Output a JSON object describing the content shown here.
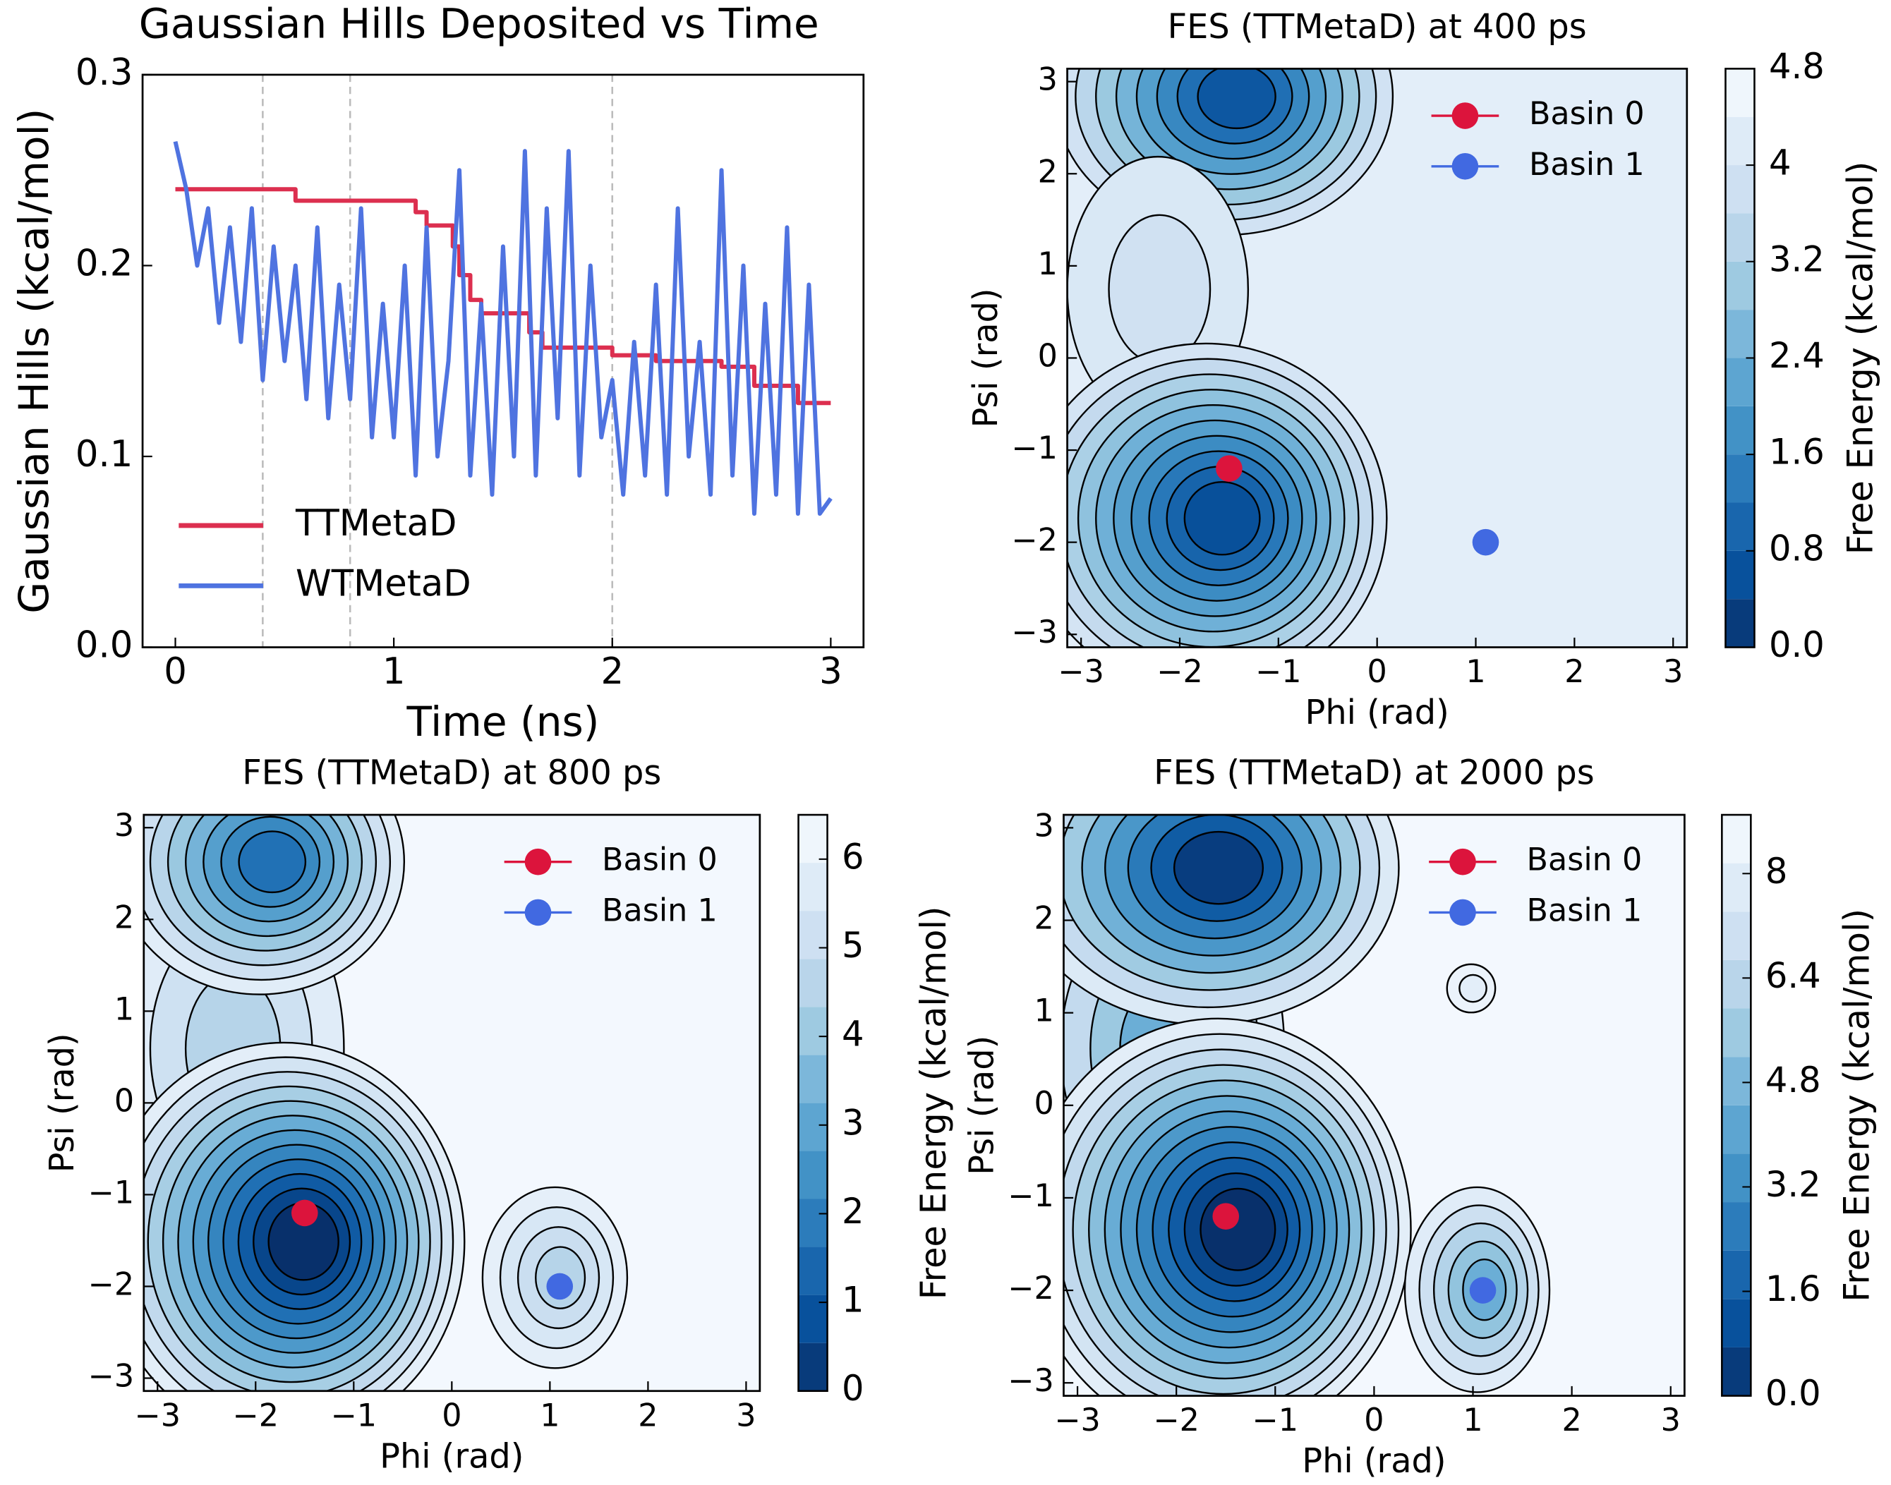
{
  "chart_data": [
    {
      "type": "line",
      "title": "Gaussian Hills Deposited vs Time",
      "x_label": "Time (ns)",
      "y_label": "Gaussian Hills (kcal/mol)",
      "xlim": [
        -0.15,
        3.15
      ],
      "ylim": [
        0,
        0.3
      ],
      "xticks": [
        0,
        1,
        2,
        3
      ],
      "yticks": [
        {
          "value": 0,
          "label": "0.0"
        },
        0.1,
        0.2,
        0.3
      ],
      "vlines": [
        0.4,
        0.8,
        2.0
      ],
      "legend": "lower left",
      "series": [
        {
          "name": "TTMetaD",
          "color": "#dc2f4f",
          "x": [
            0,
            0.55,
            0.55,
            1.1,
            1.1,
            1.15,
            1.15,
            1.27,
            1.27,
            1.3,
            1.3,
            1.35,
            1.35,
            1.4,
            1.4,
            1.62,
            1.62,
            1.68,
            1.68,
            2.0,
            2.0,
            2.2,
            2.2,
            2.5,
            2.5,
            2.65,
            2.65,
            2.85,
            2.85,
            3.0
          ],
          "values": [
            0.24,
            0.24,
            0.234,
            0.234,
            0.228,
            0.228,
            0.221,
            0.221,
            0.21,
            0.21,
            0.195,
            0.195,
            0.182,
            0.182,
            0.175,
            0.175,
            0.165,
            0.165,
            0.157,
            0.157,
            0.153,
            0.153,
            0.15,
            0.15,
            0.147,
            0.147,
            0.137,
            0.137,
            0.128,
            0.128
          ]
        },
        {
          "name": "WTMetaD",
          "color": "#4f73e0",
          "x": [
            0,
            0.05,
            0.1,
            0.15,
            0.2,
            0.25,
            0.3,
            0.35,
            0.4,
            0.45,
            0.5,
            0.55,
            0.6,
            0.65,
            0.7,
            0.75,
            0.8,
            0.85,
            0.9,
            0.95,
            1.0,
            1.05,
            1.1,
            1.15,
            1.2,
            1.25,
            1.3,
            1.35,
            1.4,
            1.45,
            1.5,
            1.55,
            1.6,
            1.65,
            1.7,
            1.75,
            1.8,
            1.85,
            1.9,
            1.95,
            2.0,
            2.05,
            2.1,
            2.15,
            2.2,
            2.25,
            2.3,
            2.35,
            2.4,
            2.45,
            2.5,
            2.55,
            2.6,
            2.65,
            2.7,
            2.75,
            2.8,
            2.85,
            2.9,
            2.95,
            3.0
          ],
          "values": [
            0.265,
            0.24,
            0.2,
            0.23,
            0.17,
            0.22,
            0.16,
            0.23,
            0.14,
            0.21,
            0.15,
            0.2,
            0.13,
            0.22,
            0.12,
            0.19,
            0.13,
            0.23,
            0.11,
            0.18,
            0.11,
            0.2,
            0.09,
            0.22,
            0.1,
            0.15,
            0.25,
            0.09,
            0.18,
            0.08,
            0.21,
            0.1,
            0.26,
            0.09,
            0.23,
            0.12,
            0.26,
            0.09,
            0.2,
            0.11,
            0.14,
            0.08,
            0.16,
            0.09,
            0.19,
            0.08,
            0.23,
            0.1,
            0.16,
            0.08,
            0.25,
            0.09,
            0.2,
            0.07,
            0.18,
            0.08,
            0.22,
            0.07,
            0.19,
            0.07,
            0.078
          ]
        }
      ]
    },
    {
      "type": "contour",
      "title": "FES (TTMetaD) at 400 ps",
      "x_label": "Phi (rad)",
      "y_label": "Psi (rad)",
      "xlim": [
        -3.14,
        3.14
      ],
      "ylim": [
        -3.14,
        3.14
      ],
      "xticks": [
        {
          "value": -3,
          "label": "−3"
        },
        {
          "value": -2,
          "label": "−2"
        },
        {
          "value": -1,
          "label": "−1"
        },
        0,
        1,
        2,
        3
      ],
      "yticks": [
        {
          "value": -3,
          "label": "−3"
        },
        {
          "value": -2,
          "label": "−2"
        },
        {
          "value": -1,
          "label": "−1"
        },
        0,
        1,
        2,
        3
      ],
      "colorbar": {
        "label": "Free Energy (kcal/mol)",
        "lim": [
          0,
          4.8
        ],
        "ticks": [
          {
            "value": 0,
            "label": "0.0"
          },
          0.8,
          1.6,
          2.4,
          3.2,
          4.0,
          4.8
        ]
      },
      "legend": "upper right",
      "series": [
        {
          "name": "Basin 0",
          "color": "#dc143c",
          "x": [
            -1.5
          ],
          "y": [
            -1.2
          ]
        },
        {
          "name": "Basin 1",
          "color": "#4169e1",
          "x": [
            1.1
          ],
          "y": [
            -2.0
          ]
        }
      ]
    },
    {
      "type": "contour",
      "title": "FES (TTMetaD) at 800 ps",
      "x_label": "Phi (rad)",
      "y_label": "Psi (rad)",
      "xlim": [
        -3.14,
        3.14
      ],
      "ylim": [
        -3.14,
        3.14
      ],
      "xticks": [
        {
          "value": -3,
          "label": "−3"
        },
        {
          "value": -2,
          "label": "−2"
        },
        {
          "value": -1,
          "label": "−1"
        },
        0,
        1,
        2,
        3
      ],
      "yticks": [
        {
          "value": -3,
          "label": "−3"
        },
        {
          "value": -2,
          "label": "−2"
        },
        {
          "value": -1,
          "label": "−1"
        },
        0,
        1,
        2,
        3
      ],
      "colorbar": {
        "label": "Free Energy (kcal/mol)",
        "lim": [
          0,
          6.5
        ],
        "ticks": [
          0,
          1,
          2,
          3,
          4,
          5,
          6
        ]
      },
      "legend": "upper right",
      "series": [
        {
          "name": "Basin 0",
          "color": "#dc143c",
          "x": [
            -1.5
          ],
          "y": [
            -1.2
          ]
        },
        {
          "name": "Basin 1",
          "color": "#4169e1",
          "x": [
            1.1
          ],
          "y": [
            -2.0
          ]
        }
      ]
    },
    {
      "type": "contour",
      "title": "FES (TTMetaD) at 2000 ps",
      "x_label": "Phi (rad)",
      "y_label": "Psi (rad)",
      "xlim": [
        -3.14,
        3.14
      ],
      "ylim": [
        -3.14,
        3.14
      ],
      "xticks": [
        {
          "value": -3,
          "label": "−3"
        },
        {
          "value": -2,
          "label": "−2"
        },
        {
          "value": -1,
          "label": "−1"
        },
        0,
        1,
        2,
        3
      ],
      "yticks": [
        {
          "value": -3,
          "label": "−3"
        },
        {
          "value": -2,
          "label": "−2"
        },
        {
          "value": -1,
          "label": "−1"
        },
        0,
        1,
        2,
        3
      ],
      "colorbar": {
        "label": "Free Energy (kcal/mol)",
        "lim": [
          0,
          8.9
        ],
        "ticks": [
          {
            "value": 0,
            "label": "0.0"
          },
          1.6,
          3.2,
          4.8,
          6.4,
          8.0
        ]
      },
      "legend": "upper right",
      "series": [
        {
          "name": "Basin 0",
          "color": "#dc143c",
          "x": [
            -1.5
          ],
          "y": [
            -1.2
          ]
        },
        {
          "name": "Basin 1",
          "color": "#4169e1",
          "x": [
            1.1
          ],
          "y": [
            -2.0
          ]
        }
      ]
    }
  ]
}
